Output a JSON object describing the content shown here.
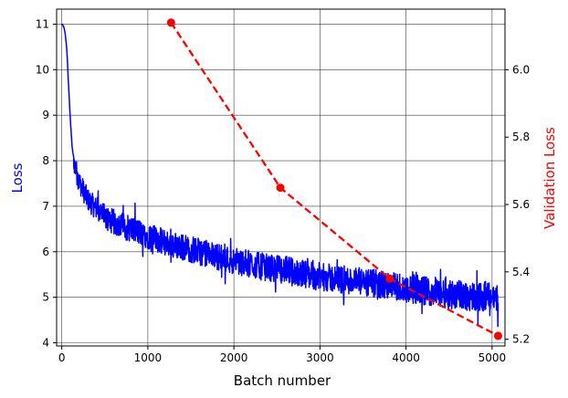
{
  "chart_data": {
    "type": "line",
    "title": "",
    "xlabel": "Batch number",
    "ylabel_left": "Loss",
    "ylabel_right": "Validation Loss",
    "xlim": [
      -60,
      5150
    ],
    "ylim_left": [
      3.93,
      11.33
    ],
    "ylim_right": [
      5.18,
      6.18
    ],
    "x_ticks": [
      0,
      1000,
      2000,
      3000,
      4000,
      5000
    ],
    "x_tick_labels": [
      "0",
      "1000",
      "2000",
      "3000",
      "4000",
      "5000"
    ],
    "y_left_ticks": [
      4,
      5,
      6,
      7,
      8,
      9,
      10,
      11
    ],
    "y_left_tick_labels": [
      "4",
      "5",
      "6",
      "7",
      "8",
      "9",
      "10",
      "11"
    ],
    "y_right_ticks": [
      5.2,
      5.4,
      5.6,
      5.8,
      6.0
    ],
    "y_right_tick_labels": [
      "5.2",
      "5.4",
      "5.6",
      "5.8",
      "6.0"
    ],
    "grid": true,
    "colors": {
      "train": "#0000ff",
      "validation": "#ff0000",
      "grid": "#000000",
      "left_label": "#0000ff",
      "right_label": "#ff0000"
    },
    "series": [
      {
        "axis": "left",
        "style": "solid-noisy",
        "x": [
          0,
          20,
          40,
          60,
          80,
          100,
          120,
          150,
          200,
          250,
          300,
          400,
          500,
          600,
          800,
          1000,
          1200,
          1400,
          1600,
          1800,
          2000,
          2200,
          2400,
          2600,
          2800,
          3000,
          3200,
          3400,
          3600,
          3800,
          4000,
          4200,
          4400,
          4600,
          4800,
          5000,
          5070
        ],
        "y": [
          11.0,
          10.95,
          10.8,
          10.4,
          9.6,
          8.9,
          8.3,
          7.9,
          7.55,
          7.35,
          7.15,
          6.95,
          6.75,
          6.65,
          6.5,
          6.35,
          6.2,
          6.1,
          6.0,
          5.9,
          5.8,
          5.72,
          5.65,
          5.6,
          5.52,
          5.45,
          5.4,
          5.35,
          5.3,
          5.25,
          5.2,
          5.15,
          5.1,
          5.05,
          5.02,
          5.0,
          4.98
        ]
      },
      {
        "axis": "right",
        "style": "dashed-markers",
        "x": [
          1270,
          2540,
          3810,
          5070
        ],
        "y": [
          6.14,
          5.65,
          5.38,
          5.21
        ]
      }
    ]
  }
}
